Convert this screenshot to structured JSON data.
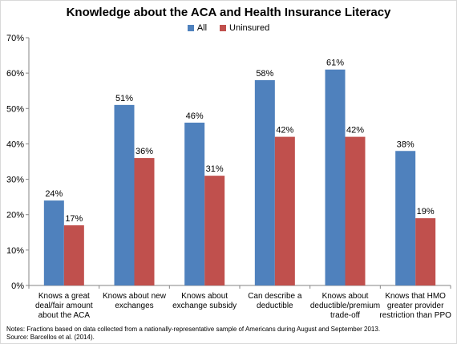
{
  "chart_data": {
    "type": "bar",
    "title": "Knowledge about the ACA and Health Insurance Literacy",
    "categories": [
      [
        "Knows a great",
        "deal/fair amount",
        "about the ACA"
      ],
      [
        "Knows about new",
        "exchanges"
      ],
      [
        "Knows about",
        "exchange subsidy"
      ],
      [
        "Can describe a",
        "deductible"
      ],
      [
        "Knows about",
        "deductible/premium",
        "trade-off"
      ],
      [
        "Knows that HMO",
        "greater provider",
        "restriction than PPO"
      ]
    ],
    "series": [
      {
        "name": "All",
        "values": [
          24,
          51,
          46,
          58,
          61,
          38
        ],
        "labels": [
          "24%",
          "51%",
          "46%",
          "58%",
          "61%",
          "38%"
        ]
      },
      {
        "name": "Uninsured",
        "values": [
          17,
          36,
          31,
          42,
          42,
          19
        ],
        "labels": [
          "17%",
          "36%",
          "31%",
          "42%",
          "42%",
          "19%"
        ]
      }
    ],
    "ylim": [
      0,
      70
    ],
    "yticks": [
      "0%",
      "10%",
      "20%",
      "30%",
      "40%",
      "50%",
      "60%",
      "70%"
    ],
    "legend_position": "top-center",
    "grid": false
  },
  "colors": {
    "All": "#4f81bd",
    "Uninsured": "#c0504d"
  },
  "notes": [
    "Notes: Fractions based on data collected from a nationally-representative sample of Americans during August and September 2013.",
    "Source: Barcellos et al. (2014)."
  ]
}
